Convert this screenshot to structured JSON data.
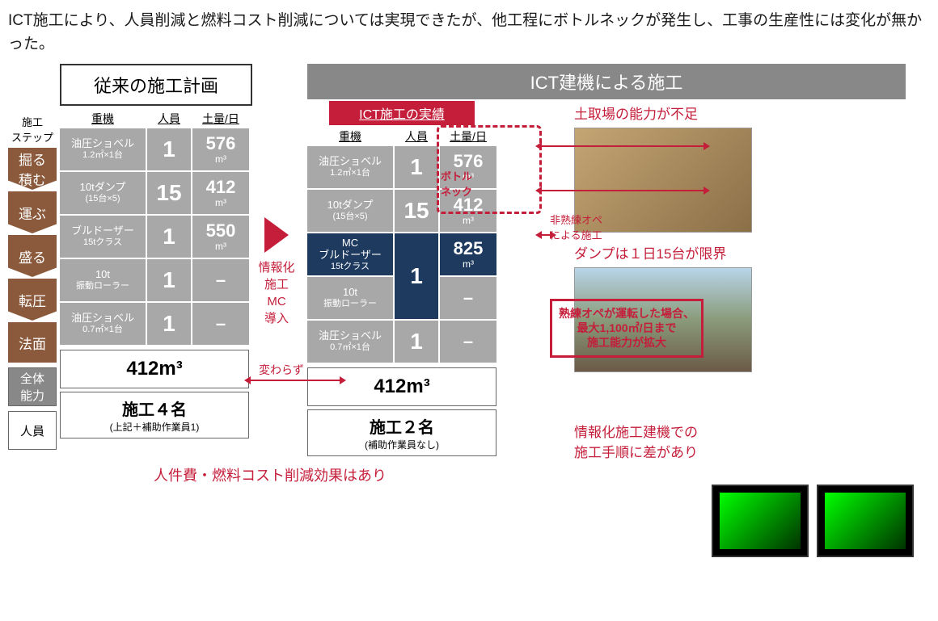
{
  "intro": "ICT施工により、人員削減と燃料コスト削減については実現できたが、他工程にボトルネックが発生し、工事の生産性には変化が無かった。",
  "stepLabel": "施工\nステップ",
  "steps": [
    "掘る\n積む",
    "運ぶ",
    "盛る",
    "転圧",
    "法面"
  ],
  "conventional": {
    "title": "従来の施工計画",
    "headers": [
      "重機",
      "人員",
      "土量/日"
    ],
    "rows": [
      {
        "machine": "油圧ショベル",
        "spec": "1.2㎡×1台",
        "people": "1",
        "vol": "576",
        "unit": "m³"
      },
      {
        "machine": "10tダンプ",
        "spec": "(15台×5)",
        "people": "15",
        "vol": "412",
        "unit": "m³"
      },
      {
        "machine": "ブルドーザー",
        "spec": "15tクラス",
        "people": "1",
        "vol": "550",
        "unit": "m³"
      },
      {
        "machine": "10t",
        "spec": "振動ローラー",
        "people": "1",
        "vol": "–",
        "unit": ""
      },
      {
        "machine": "油圧ショベル",
        "spec": "0.7㎡×1台",
        "people": "1",
        "vol": "–",
        "unit": ""
      }
    ],
    "total": "412m³",
    "peopleTitle": "施工４名",
    "peopleSub": "(上記＋補助作業員1)"
  },
  "midText": "情報化\n施工\nMC\n導入",
  "ict": {
    "headTitle": "ICT建機による施工",
    "subTitle": "ICT施工の実績",
    "headers": [
      "重機",
      "人員",
      "土量/日"
    ],
    "rows": [
      {
        "machine": "油圧ショベル",
        "spec": "1.2㎡×1台",
        "people": "1",
        "vol": "576",
        "unit": "m³",
        "navy": false
      },
      {
        "machine": "10tダンプ",
        "spec": "(15台×5)",
        "people": "15",
        "vol": "412",
        "unit": "m³",
        "navy": false
      },
      {
        "machine": "MC\nブルドーザー",
        "spec": "15tクラス",
        "people": "1",
        "vol": "825",
        "unit": "m³",
        "navy": true,
        "merged": true
      },
      {
        "machine": "10t",
        "spec": "振動ローラー",
        "people": "",
        "vol": "–",
        "unit": "",
        "navy": false
      },
      {
        "machine": "油圧ショベル",
        "spec": "0.7㎡×1台",
        "people": "1",
        "vol": "–",
        "unit": "",
        "navy": false
      }
    ],
    "total": "412m³",
    "peopleTitle": "施工２名",
    "peopleSub": "(補助作業員なし)"
  },
  "summLabels": {
    "total": "全体\n能力",
    "people": "人員"
  },
  "annotations": {
    "bottleneck": "ボトル\nネック",
    "unskilled": "非熟練オペ\nによる施工",
    "unchanged": "変わらず",
    "expert": "熟練オペが運転した場合、\n最大1,100㎡/日まで\n施工能力が拡大"
  },
  "callouts": {
    "c1": "土取場の能力が不足",
    "c2": "ダンプは１日15台が限界",
    "c3": "情報化施工建機での\n施工手順に差があり"
  },
  "footer": "人件費・燃料コスト削減効果はあり",
  "colors": {
    "brown": "#8b5a3c",
    "gray": "#a8a8a8",
    "navy": "#1e3a5f",
    "red": "#c41e3a"
  }
}
